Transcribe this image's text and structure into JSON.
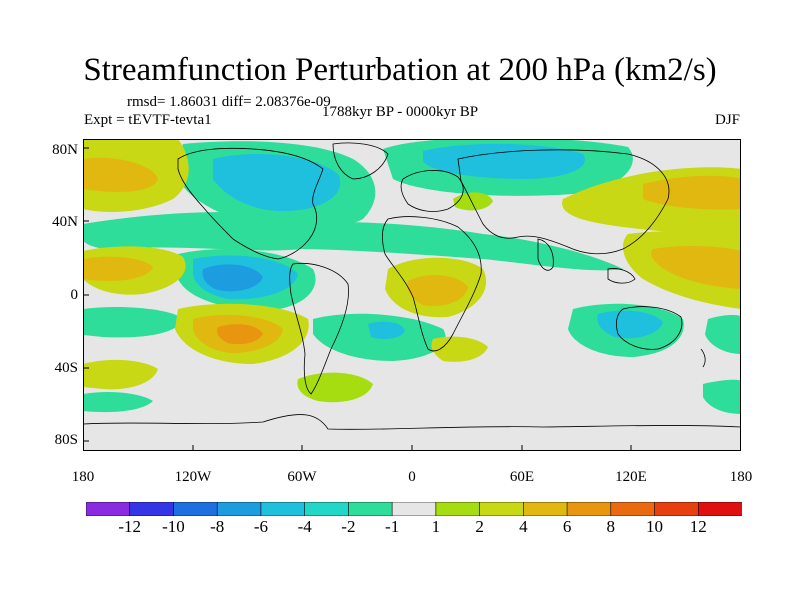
{
  "title": "Streamfunction Perturbation at 200 hPa (km2/s)",
  "stats": "rmsd= 1.86031  diff= 2.08376e-09",
  "expt": "Expt = tEVTF-tevta1",
  "period": "1788kyr BP - 0000kyr BP",
  "season": "DJF",
  "lat_labels": [
    "80N",
    "40N",
    "0",
    "40S",
    "80S"
  ],
  "lon_labels": [
    "180",
    "120W",
    "60W",
    "0",
    "60E",
    "120E",
    "180"
  ],
  "colorbar": {
    "labels": [
      "-12",
      "-10",
      "-8",
      "-6",
      "-4",
      "-2",
      "-1",
      "1",
      "2",
      "4",
      "6",
      "8",
      "10",
      "12"
    ],
    "colors": [
      "#8a2be2",
      "#3535e6",
      "#1e6fe0",
      "#1e9ce0",
      "#1ec0de",
      "#23d7c8",
      "#2edd9a",
      "#e6e6e6",
      "#a5dd10",
      "#c8d815",
      "#e0b810",
      "#e89610",
      "#ea6a10",
      "#e64010",
      "#e01010"
    ]
  },
  "field_regions": [
    {
      "name": "negative-anomaly-north-america",
      "level": "-4"
    },
    {
      "name": "negative-anomaly-north-pacific-east",
      "level": "-2"
    },
    {
      "name": "negative-anomaly-arctic-eurasia",
      "level": "-4"
    },
    {
      "name": "negative-anomaly-tropical-east-pacific",
      "level": "-6"
    },
    {
      "name": "positive-anomaly-subtropical-south-pacific",
      "level": "6"
    },
    {
      "name": "positive-anomaly-north-africa",
      "level": "4"
    },
    {
      "name": "positive-anomaly-north-pacific-west",
      "level": "4"
    },
    {
      "name": "positive-anomaly-subtropical-west-pacific",
      "level": "6"
    },
    {
      "name": "negative-anomaly-australia",
      "level": "-2"
    },
    {
      "name": "positive-anomaly-southern-ocean",
      "level": "2"
    }
  ]
}
